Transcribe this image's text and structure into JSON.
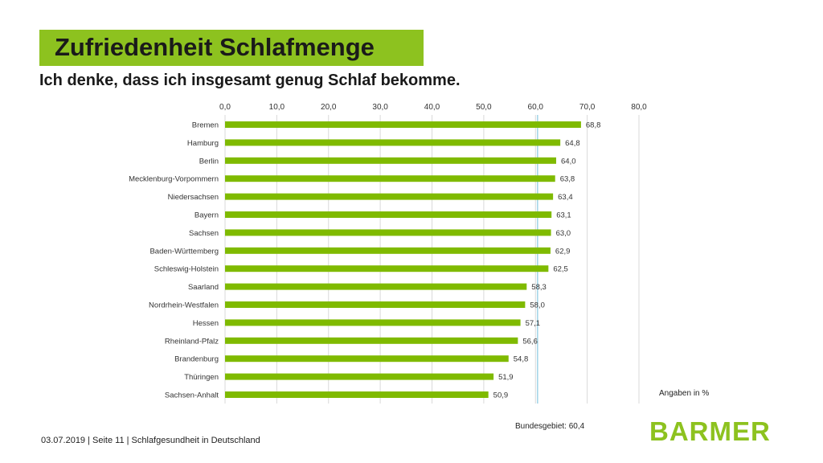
{
  "header": {
    "title": "Zufriedenheit Schlafmenge",
    "subtitle": "Ich denke, dass ich insgesamt genug Schlaf bekomme."
  },
  "chart_data": {
    "type": "bar",
    "orientation": "horizontal",
    "categories": [
      "Bremen",
      "Hamburg",
      "Berlin",
      "Mecklenburg-Vorpommern",
      "Niedersachsen",
      "Bayern",
      "Sachsen",
      "Baden-Württemberg",
      "Schleswig-Holstein",
      "Saarland",
      "Nordrhein-Westfalen",
      "Hessen",
      "Rheinland-Pfalz",
      "Brandenburg",
      "Thüringen",
      "Sachsen-Anhalt"
    ],
    "values": [
      68.8,
      64.8,
      64.0,
      63.8,
      63.4,
      63.1,
      63.0,
      62.9,
      62.5,
      58.3,
      58.0,
      57.1,
      56.6,
      54.8,
      51.9,
      50.9
    ],
    "value_labels": [
      "68,8",
      "64,8",
      "64,0",
      "63,8",
      "63,4",
      "63,1",
      "63,0",
      "62,9",
      "62,5",
      "58,3",
      "58,0",
      "57,1",
      "56,6",
      "54,8",
      "51,9",
      "50,9"
    ],
    "x_ticks": [
      "0,0",
      "10,0",
      "20,0",
      "30,0",
      "40,0",
      "50,0",
      "60,0",
      "70,0",
      "80,0"
    ],
    "x_tick_values": [
      0,
      10,
      20,
      30,
      40,
      50,
      60,
      70,
      80
    ],
    "xlim": [
      0,
      80
    ],
    "axis_position": "top",
    "grid": true,
    "reference_line": {
      "value": 60.4,
      "label": "Bundesgebiet: 60,4"
    },
    "unit_note": "Angaben in %",
    "colors": {
      "bar": "#7fba00",
      "grid": "#d9d9d9",
      "reference": "#9fd3e6"
    }
  },
  "footer": {
    "text": "03.07.2019 | Seite 11 | Schlafgesundheit in Deutschland"
  },
  "brand": {
    "logo_text": "BARMER",
    "color": "#8dc21f"
  }
}
